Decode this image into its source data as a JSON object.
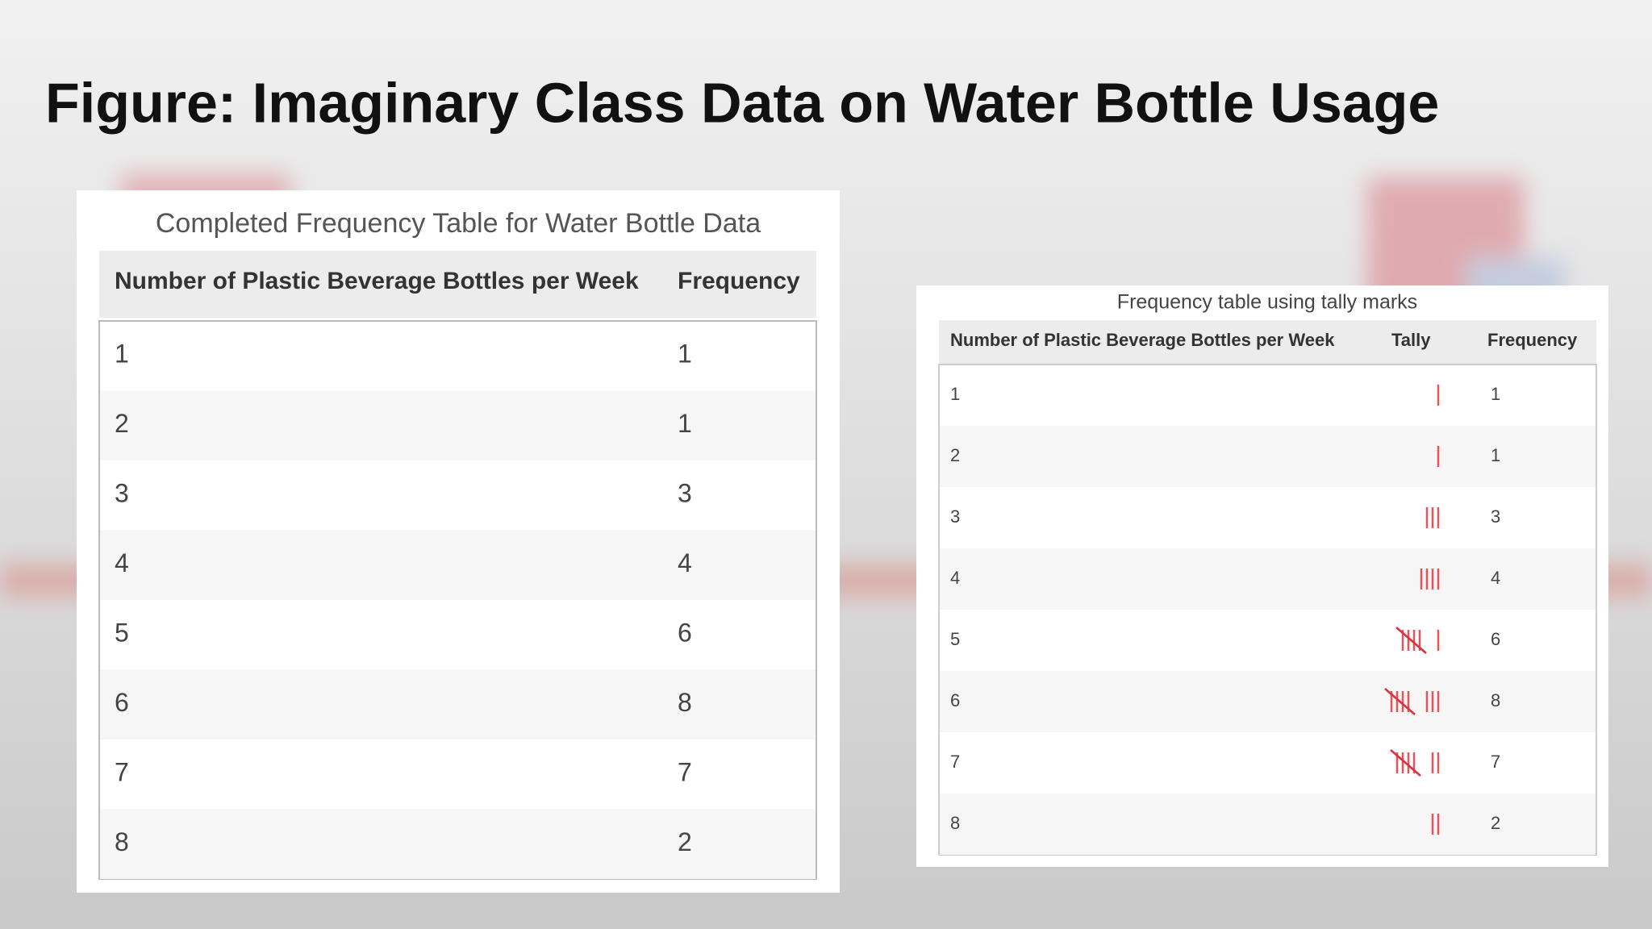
{
  "title": "Figure: Imaginary Class Data on Water Bottle Usage",
  "table1": {
    "caption": "Completed Frequency Table for Water Bottle Data",
    "headers": [
      "Number of Plastic Beverage Bottles per Week",
      "Frequency"
    ],
    "rows": [
      [
        1,
        1
      ],
      [
        2,
        1
      ],
      [
        3,
        3
      ],
      [
        4,
        4
      ],
      [
        5,
        6
      ],
      [
        6,
        8
      ],
      [
        7,
        7
      ],
      [
        8,
        2
      ]
    ]
  },
  "table2": {
    "caption": "Frequency table using tally marks",
    "headers": [
      "Number of Plastic Beverage Bottles per Week",
      "Tally",
      "Frequency"
    ],
    "rows": [
      [
        1,
        1
      ],
      [
        2,
        1
      ],
      [
        3,
        3
      ],
      [
        4,
        4
      ],
      [
        5,
        6
      ],
      [
        6,
        8
      ],
      [
        7,
        7
      ],
      [
        8,
        2
      ]
    ]
  }
}
